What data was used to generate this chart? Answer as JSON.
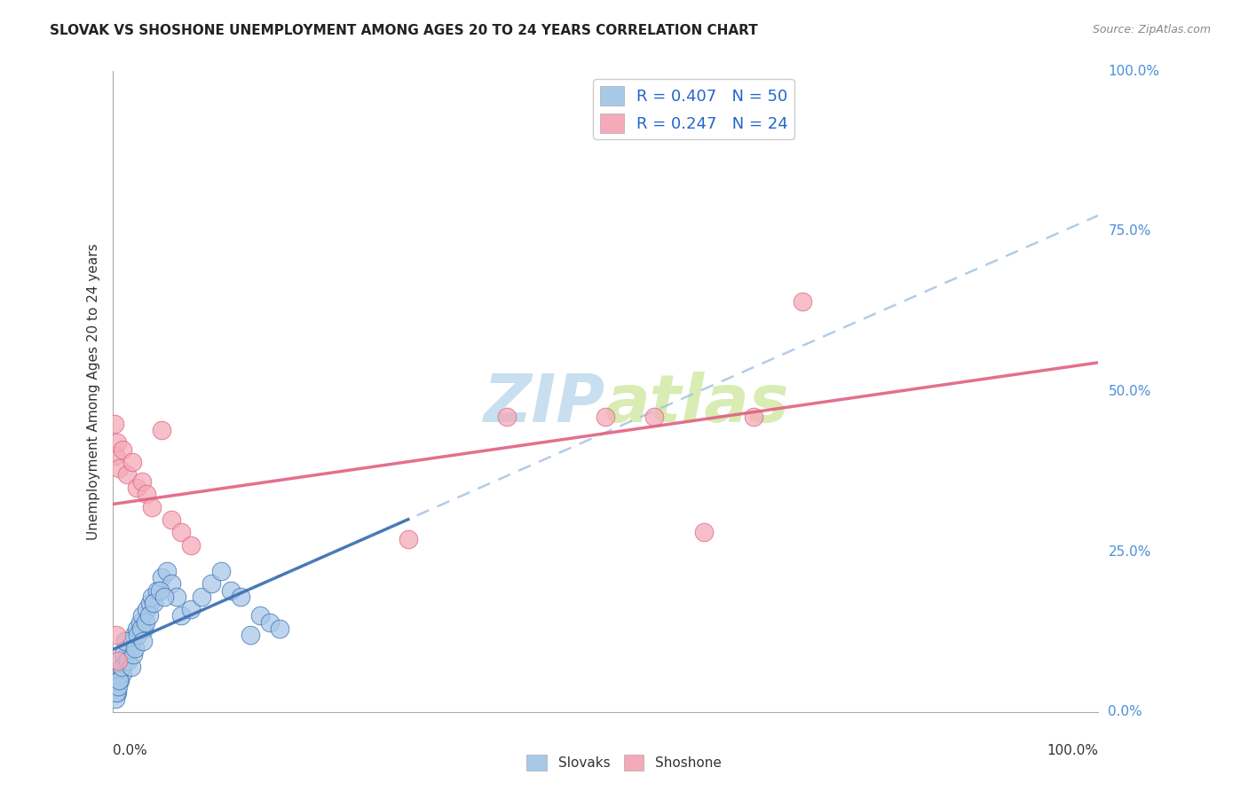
{
  "title": "SLOVAK VS SHOSHONE UNEMPLOYMENT AMONG AGES 20 TO 24 YEARS CORRELATION CHART",
  "source": "Source: ZipAtlas.com",
  "ylabel": "Unemployment Among Ages 20 to 24 years",
  "legend_label1": "Slovaks",
  "legend_label2": "Shoshone",
  "R1": 0.407,
  "N1": 50,
  "R2": 0.247,
  "N2": 24,
  "color_slovak": "#a8c8e8",
  "color_shoshone": "#f4aab8",
  "color_slovak_line": "#3a6faf",
  "color_shoshone_line": "#e06080",
  "color_dashed": "#a0c0e0",
  "watermark_color": "#c8dff0",
  "slovak_x": [
    0.5,
    0.8,
    1.0,
    1.2,
    1.5,
    1.8,
    2.0,
    2.2,
    2.5,
    2.8,
    3.0,
    3.2,
    3.5,
    3.8,
    4.0,
    4.5,
    5.0,
    5.5,
    6.0,
    6.5,
    7.0,
    8.0,
    9.0,
    10.0,
    11.0,
    12.0,
    13.0,
    14.0,
    15.0,
    16.0,
    0.3,
    0.4,
    0.6,
    0.7,
    0.9,
    1.1,
    1.3,
    1.6,
    1.9,
    2.1,
    2.3,
    2.6,
    2.9,
    3.1,
    3.4,
    3.7,
    4.2,
    4.8,
    5.3,
    17.0
  ],
  "slovak_y": [
    3.0,
    5.0,
    6.0,
    8.0,
    9.0,
    10.0,
    11.0,
    12.0,
    13.0,
    14.0,
    15.0,
    13.0,
    16.0,
    17.0,
    18.0,
    19.0,
    21.0,
    22.0,
    20.0,
    18.0,
    15.0,
    16.0,
    18.0,
    20.0,
    22.0,
    19.0,
    18.0,
    12.0,
    15.0,
    14.0,
    2.0,
    3.0,
    4.0,
    5.0,
    7.0,
    9.0,
    11.0,
    8.0,
    7.0,
    9.0,
    10.0,
    12.0,
    13.0,
    11.0,
    14.0,
    15.0,
    17.0,
    19.0,
    18.0,
    13.0
  ],
  "shoshone_x": [
    0.2,
    0.3,
    0.5,
    0.7,
    1.0,
    1.5,
    2.0,
    2.5,
    3.0,
    3.5,
    4.0,
    5.0,
    6.0,
    7.0,
    8.0,
    30.0,
    40.0,
    50.0,
    55.0,
    60.0,
    65.0,
    70.0,
    0.4,
    0.6
  ],
  "shoshone_y": [
    45.0,
    40.0,
    42.0,
    38.0,
    41.0,
    37.0,
    39.0,
    35.0,
    36.0,
    34.0,
    32.0,
    44.0,
    30.0,
    28.0,
    26.0,
    27.0,
    46.0,
    46.0,
    46.0,
    28.0,
    46.0,
    64.0,
    12.0,
    8.0
  ],
  "background_color": "#ffffff"
}
